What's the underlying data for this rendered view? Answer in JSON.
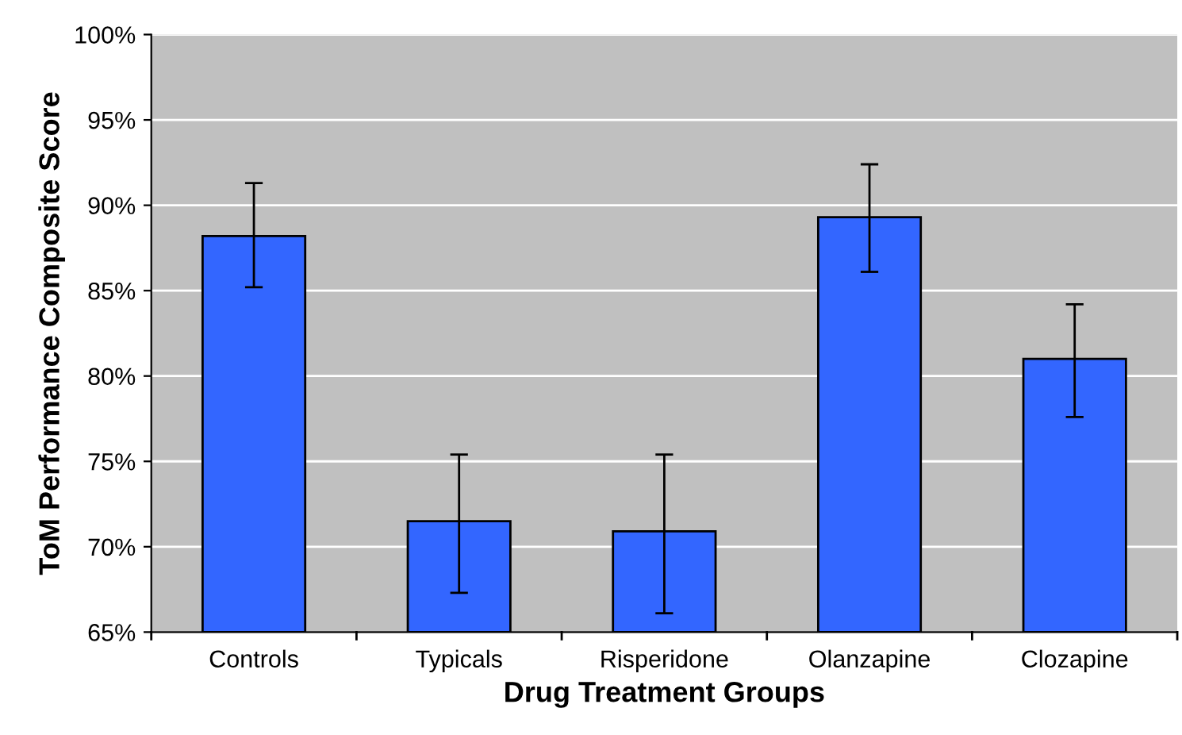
{
  "chart_data": {
    "type": "bar",
    "xlabel": "Drug Treatment Groups",
    "ylabel": "ToM Performance Composite Score",
    "categories": [
      "Controls",
      "Typicals",
      "Risperidone",
      "Olanzapine",
      "Clozapine"
    ],
    "values": [
      88.2,
      71.5,
      70.9,
      89.3,
      81.0
    ],
    "errors": [
      [
        85.2,
        91.3
      ],
      [
        67.3,
        75.4
      ],
      [
        66.1,
        75.4
      ],
      [
        86.1,
        92.4
      ],
      [
        77.6,
        84.2
      ]
    ],
    "color": "#3366ff",
    "ylim": [
      65,
      100
    ],
    "yticks": [
      {
        "value": 65,
        "label": "65%"
      },
      {
        "value": 70,
        "label": "70%"
      },
      {
        "value": 75,
        "label": "75%"
      },
      {
        "value": 80,
        "label": "80%"
      },
      {
        "value": 85,
        "label": "85%"
      },
      {
        "value": 90,
        "label": "90%"
      },
      {
        "value": 95,
        "label": "95%"
      },
      {
        "value": 100,
        "label": "100%"
      }
    ],
    "grid": "y"
  }
}
